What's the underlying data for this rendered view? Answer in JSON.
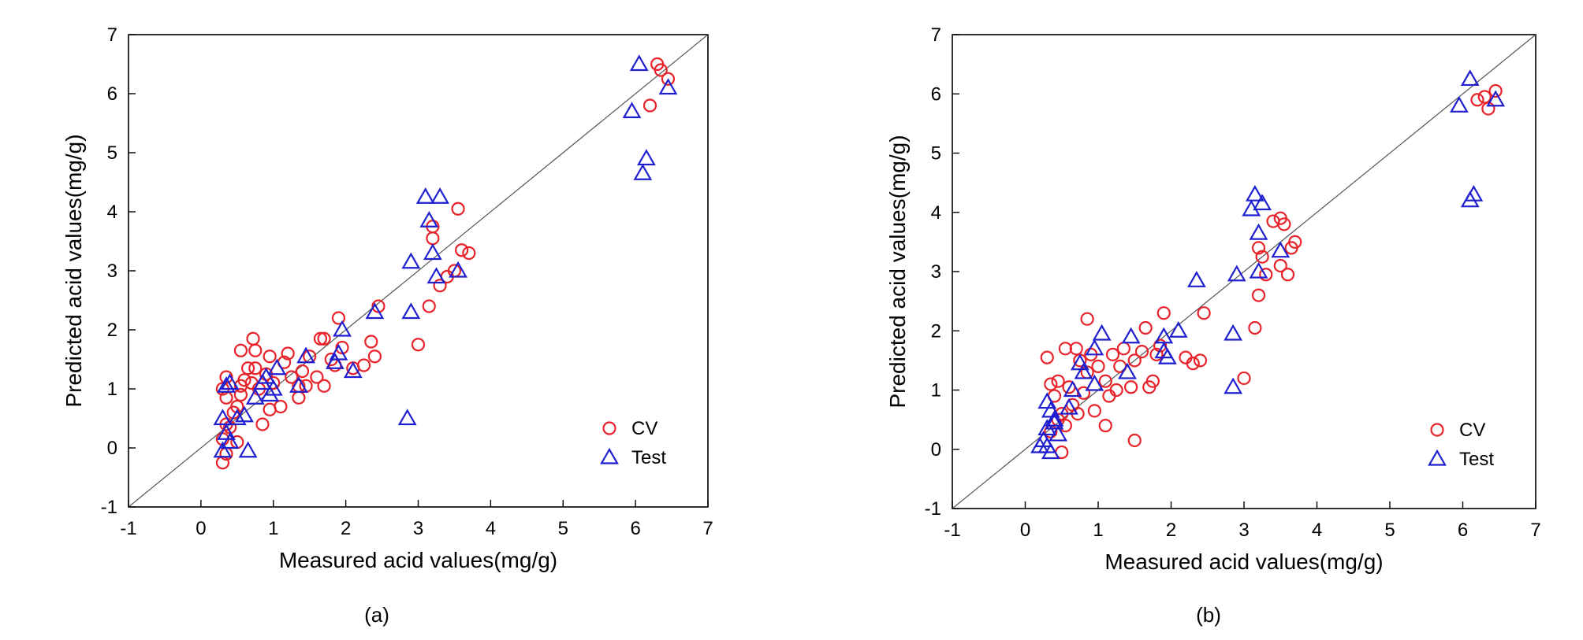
{
  "colors": {
    "cv": "#e8232a",
    "test": "#1f1fd0",
    "line": "#555555",
    "axis": "#000000"
  },
  "chart_data": [
    {
      "type": "scatter",
      "caption": "(a)",
      "xlabel": "Measured acid values(mg/g)",
      "ylabel": "Predicted acid values(mg/g)",
      "xlim": [
        -1,
        7
      ],
      "ylim": [
        -1,
        7
      ],
      "xticks": [
        "-1",
        "0",
        "1",
        "2",
        "3",
        "4",
        "5",
        "6",
        "7"
      ],
      "yticks": [
        "-1",
        "0",
        "1",
        "2",
        "3",
        "4",
        "5",
        "6",
        "7"
      ],
      "legend_position": "bottom-right",
      "series": [
        {
          "name": "CV",
          "marker": "circle",
          "points": [
            [
              0.3,
              -0.25
            ],
            [
              0.35,
              -0.1
            ],
            [
              0.3,
              0.15
            ],
            [
              0.4,
              0.35
            ],
            [
              0.45,
              0.6
            ],
            [
              0.35,
              0.85
            ],
            [
              0.3,
              1.0
            ],
            [
              0.35,
              1.2
            ],
            [
              0.5,
              0.7
            ],
            [
              0.55,
              0.9
            ],
            [
              0.55,
              1.05
            ],
            [
              0.6,
              1.15
            ],
            [
              0.55,
              1.65
            ],
            [
              0.65,
              1.35
            ],
            [
              0.7,
              1.1
            ],
            [
              0.72,
              1.85
            ],
            [
              0.75,
              1.65
            ],
            [
              0.75,
              1.35
            ],
            [
              0.8,
              1.0
            ],
            [
              0.85,
              0.4
            ],
            [
              0.9,
              1.25
            ],
            [
              0.95,
              1.55
            ],
            [
              0.95,
              0.65
            ],
            [
              1.0,
              1.1
            ],
            [
              1.1,
              0.7
            ],
            [
              1.15,
              1.45
            ],
            [
              1.2,
              1.6
            ],
            [
              1.25,
              1.2
            ],
            [
              1.35,
              0.85
            ],
            [
              1.35,
              1.05
            ],
            [
              1.4,
              1.3
            ],
            [
              1.45,
              1.05
            ],
            [
              1.5,
              1.55
            ],
            [
              1.6,
              1.2
            ],
            [
              1.65,
              1.85
            ],
            [
              1.7,
              1.05
            ],
            [
              1.7,
              1.85
            ],
            [
              1.8,
              1.5
            ],
            [
              1.85,
              1.4
            ],
            [
              1.9,
              2.2
            ],
            [
              1.95,
              1.7
            ],
            [
              2.1,
              1.35
            ],
            [
              2.25,
              1.4
            ],
            [
              2.35,
              1.8
            ],
            [
              2.4,
              1.55
            ],
            [
              2.45,
              2.4
            ],
            [
              3.0,
              1.75
            ],
            [
              3.15,
              2.4
            ],
            [
              3.2,
              3.55
            ],
            [
              3.2,
              3.75
            ],
            [
              3.3,
              2.75
            ],
            [
              3.4,
              2.9
            ],
            [
              3.5,
              3.0
            ],
            [
              3.55,
              4.05
            ],
            [
              3.6,
              3.35
            ],
            [
              3.7,
              3.3
            ],
            [
              6.2,
              5.8
            ],
            [
              6.3,
              6.5
            ],
            [
              6.35,
              6.4
            ],
            [
              6.45,
              6.25
            ],
            [
              0.35,
              0.4
            ],
            [
              0.5,
              0.1
            ]
          ]
        },
        {
          "name": "Test",
          "marker": "triangle",
          "points": [
            [
              0.3,
              0.5
            ],
            [
              0.3,
              -0.05
            ],
            [
              0.35,
              0.25
            ],
            [
              0.35,
              1.05
            ],
            [
              0.4,
              0.1
            ],
            [
              0.4,
              1.1
            ],
            [
              0.5,
              0.5
            ],
            [
              0.6,
              0.55
            ],
            [
              0.65,
              -0.05
            ],
            [
              0.75,
              0.85
            ],
            [
              0.85,
              1.1
            ],
            [
              0.9,
              1.2
            ],
            [
              0.95,
              0.9
            ],
            [
              1.0,
              1.0
            ],
            [
              1.05,
              1.35
            ],
            [
              1.35,
              1.05
            ],
            [
              1.45,
              1.55
            ],
            [
              1.85,
              1.45
            ],
            [
              1.9,
              1.6
            ],
            [
              1.95,
              2.0
            ],
            [
              2.1,
              1.3
            ],
            [
              2.4,
              2.3
            ],
            [
              2.85,
              0.5
            ],
            [
              2.9,
              2.3
            ],
            [
              2.9,
              3.15
            ],
            [
              3.1,
              4.25
            ],
            [
              3.15,
              3.85
            ],
            [
              3.2,
              3.3
            ],
            [
              3.25,
              2.9
            ],
            [
              3.3,
              4.25
            ],
            [
              3.55,
              3.0
            ],
            [
              5.95,
              5.7
            ],
            [
              6.05,
              6.5
            ],
            [
              6.1,
              4.65
            ],
            [
              6.15,
              4.9
            ],
            [
              6.45,
              6.1
            ]
          ]
        }
      ]
    },
    {
      "type": "scatter",
      "caption": "(b)",
      "xlabel": "Measured acid values(mg/g)",
      "ylabel": "Predicted acid values(mg/g)",
      "xlim": [
        -1,
        7
      ],
      "ylim": [
        -1,
        7
      ],
      "xticks": [
        "-1",
        "0",
        "1",
        "2",
        "3",
        "4",
        "5",
        "6",
        "7"
      ],
      "yticks": [
        "-1",
        "0",
        "1",
        "2",
        "3",
        "4",
        "5",
        "6",
        "7"
      ],
      "legend_position": "bottom-right",
      "series": [
        {
          "name": "CV",
          "marker": "circle",
          "points": [
            [
              0.3,
              1.55
            ],
            [
              0.35,
              1.1
            ],
            [
              0.4,
              0.9
            ],
            [
              0.45,
              1.15
            ],
            [
              0.5,
              0.6
            ],
            [
              0.5,
              -0.05
            ],
            [
              0.55,
              0.4
            ],
            [
              0.55,
              1.7
            ],
            [
              0.6,
              1.05
            ],
            [
              0.65,
              0.75
            ],
            [
              0.7,
              1.7
            ],
            [
              0.72,
              0.6
            ],
            [
              0.75,
              1.5
            ],
            [
              0.8,
              0.95
            ],
            [
              0.85,
              2.2
            ],
            [
              0.85,
              1.3
            ],
            [
              0.9,
              1.6
            ],
            [
              0.95,
              0.65
            ],
            [
              1.0,
              1.4
            ],
            [
              1.1,
              1.15
            ],
            [
              1.1,
              0.4
            ],
            [
              1.15,
              0.9
            ],
            [
              1.2,
              1.6
            ],
            [
              1.25,
              1.0
            ],
            [
              1.3,
              1.4
            ],
            [
              1.35,
              1.7
            ],
            [
              1.45,
              1.05
            ],
            [
              1.5,
              1.5
            ],
            [
              1.5,
              0.15
            ],
            [
              1.6,
              1.65
            ],
            [
              1.65,
              2.05
            ],
            [
              1.7,
              1.05
            ],
            [
              1.75,
              1.15
            ],
            [
              1.8,
              1.6
            ],
            [
              1.85,
              1.75
            ],
            [
              1.9,
              2.3
            ],
            [
              2.2,
              1.55
            ],
            [
              2.3,
              1.45
            ],
            [
              2.4,
              1.5
            ],
            [
              2.45,
              2.3
            ],
            [
              3.0,
              1.2
            ],
            [
              3.15,
              2.05
            ],
            [
              3.2,
              2.6
            ],
            [
              3.2,
              3.4
            ],
            [
              3.25,
              3.25
            ],
            [
              3.3,
              2.95
            ],
            [
              3.4,
              3.85
            ],
            [
              3.5,
              3.9
            ],
            [
              3.5,
              3.1
            ],
            [
              3.55,
              3.8
            ],
            [
              3.6,
              2.95
            ],
            [
              3.65,
              3.4
            ],
            [
              3.7,
              3.5
            ],
            [
              6.2,
              5.9
            ],
            [
              6.3,
              5.95
            ],
            [
              6.35,
              5.75
            ],
            [
              6.45,
              6.05
            ],
            [
              0.35,
              0.3
            ],
            [
              0.45,
              0.5
            ]
          ]
        },
        {
          "name": "Test",
          "marker": "triangle",
          "points": [
            [
              0.2,
              0.05
            ],
            [
              0.25,
              0.15
            ],
            [
              0.3,
              0.05
            ],
            [
              0.3,
              0.35
            ],
            [
              0.3,
              0.8
            ],
            [
              0.35,
              0.65
            ],
            [
              0.35,
              -0.05
            ],
            [
              0.4,
              0.45
            ],
            [
              0.4,
              0.5
            ],
            [
              0.45,
              0.25
            ],
            [
              0.6,
              0.7
            ],
            [
              0.65,
              1.0
            ],
            [
              0.75,
              1.45
            ],
            [
              0.8,
              1.3
            ],
            [
              0.95,
              1.1
            ],
            [
              0.95,
              1.7
            ],
            [
              1.05,
              1.95
            ],
            [
              1.4,
              1.3
            ],
            [
              1.45,
              1.9
            ],
            [
              1.9,
              1.9
            ],
            [
              1.9,
              1.65
            ],
            [
              1.95,
              1.55
            ],
            [
              2.1,
              2.0
            ],
            [
              2.35,
              2.85
            ],
            [
              2.85,
              1.05
            ],
            [
              2.85,
              1.95
            ],
            [
              2.9,
              2.95
            ],
            [
              3.1,
              4.05
            ],
            [
              3.15,
              4.3
            ],
            [
              3.2,
              3.65
            ],
            [
              3.2,
              3.0
            ],
            [
              3.25,
              4.15
            ],
            [
              3.5,
              3.35
            ],
            [
              5.95,
              5.8
            ],
            [
              6.1,
              6.25
            ],
            [
              6.1,
              4.2
            ],
            [
              6.15,
              4.3
            ],
            [
              6.45,
              5.9
            ]
          ]
        }
      ]
    }
  ]
}
